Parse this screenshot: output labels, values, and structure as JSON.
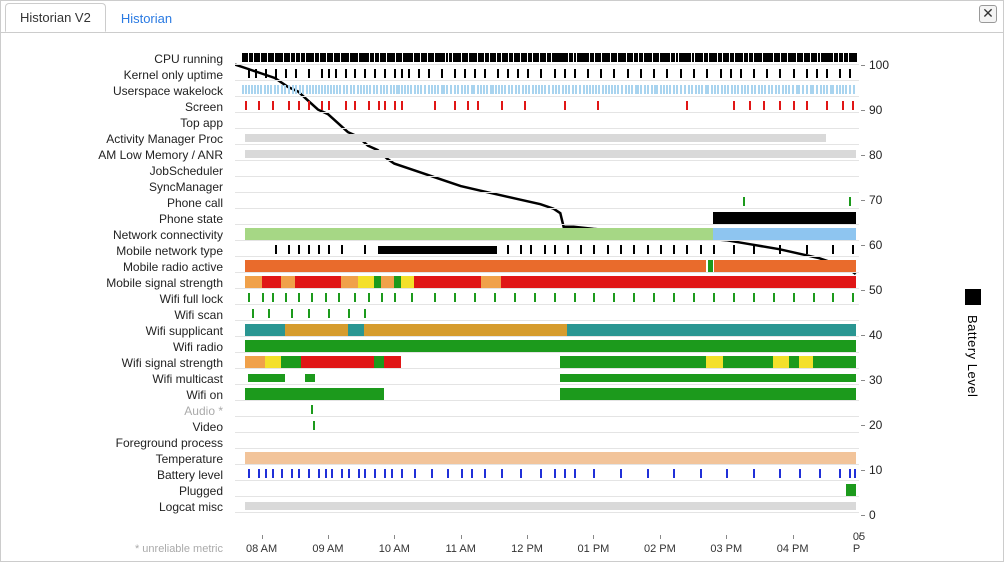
{
  "tabs": {
    "active": "Historian V2",
    "inactive": "Historian"
  },
  "close_glyph": "✕",
  "footnote": "* unreliable metric",
  "y_axis": {
    "title": "Battery Level",
    "min": 0,
    "max": 103,
    "ticks": [
      0,
      10,
      20,
      30,
      40,
      50,
      60,
      70,
      80,
      90,
      100
    ]
  },
  "x_axis": {
    "t_min": 7.6,
    "t_max": 17.0,
    "ticks": [
      {
        "t": 8,
        "label": "08 AM"
      },
      {
        "t": 9,
        "label": "09 AM"
      },
      {
        "t": 10,
        "label": "10 AM"
      },
      {
        "t": 11,
        "label": "11 AM"
      },
      {
        "t": 12,
        "label": "12 PM"
      },
      {
        "t": 13,
        "label": "01 PM"
      },
      {
        "t": 14,
        "label": "02 PM"
      },
      {
        "t": 15,
        "label": "03 PM"
      },
      {
        "t": 16,
        "label": "04 PM"
      },
      {
        "t": 17,
        "label": "05 P"
      }
    ]
  },
  "colors": {
    "black": "#000000",
    "lightblue": "#a9d4ef",
    "skyblue": "#8ec5f0",
    "palegreen": "#a6d785",
    "red": "#e01616",
    "orange_dk": "#e96b2c",
    "orange": "#f0a14a",
    "yellow": "#f4e02a",
    "green": "#1c9a1c",
    "teal": "#2a9692",
    "mustard": "#d69c2e",
    "blue": "#2030d8",
    "ltgray": "#d9d9d9",
    "peach": "#f2c49a"
  },
  "battery_path": [
    [
      7.6,
      100
    ],
    [
      7.8,
      99
    ],
    [
      8.0,
      98
    ],
    [
      8.2,
      97
    ],
    [
      8.4,
      95
    ],
    [
      8.55,
      94
    ],
    [
      8.7,
      92
    ],
    [
      8.85,
      90
    ],
    [
      9.0,
      89
    ],
    [
      9.15,
      87
    ],
    [
      9.3,
      85
    ],
    [
      9.45,
      84
    ],
    [
      9.6,
      82
    ],
    [
      9.75,
      81
    ],
    [
      9.9,
      79
    ],
    [
      10.0,
      78
    ],
    [
      10.2,
      77
    ],
    [
      10.4,
      76
    ],
    [
      10.6,
      75
    ],
    [
      10.8,
      74
    ],
    [
      11.0,
      73
    ],
    [
      11.3,
      72
    ],
    [
      11.6,
      71
    ],
    [
      11.9,
      70
    ],
    [
      12.2,
      69
    ],
    [
      12.4,
      68
    ],
    [
      12.5,
      67
    ],
    [
      12.55,
      64
    ],
    [
      12.7,
      64
    ],
    [
      13.0,
      63.5
    ],
    [
      13.4,
      63
    ],
    [
      13.8,
      62.5
    ],
    [
      14.2,
      62
    ],
    [
      14.6,
      61.5
    ],
    [
      15.0,
      61
    ],
    [
      15.4,
      60
    ],
    [
      15.8,
      59
    ],
    [
      16.1,
      58
    ],
    [
      16.4,
      57
    ],
    [
      16.6,
      56
    ],
    [
      16.7,
      55.5
    ],
    [
      16.8,
      55
    ],
    [
      16.9,
      54
    ],
    [
      16.95,
      53.5
    ]
  ],
  "rows": [
    {
      "label": "CPU running",
      "dense_ticks": {
        "color": "black",
        "from": 7.7,
        "to": 16.95,
        "gap": 0.035,
        "jitter": 0.15
      }
    },
    {
      "label": "Kernel only uptime",
      "ticks": {
        "color": "black",
        "at": [
          7.8,
          7.9,
          8.05,
          8.2,
          8.35,
          8.5,
          8.7,
          8.9,
          9.0,
          9.1,
          9.25,
          9.4,
          9.55,
          9.7,
          9.85,
          10.0,
          10.1,
          10.2,
          10.35,
          10.5,
          10.7,
          10.9,
          11.05,
          11.2,
          11.35,
          11.55,
          11.7,
          11.85,
          12.0,
          12.2,
          12.4,
          12.55,
          12.7,
          12.9,
          13.1,
          13.3,
          13.5,
          13.7,
          13.9,
          14.1,
          14.3,
          14.5,
          14.7,
          14.9,
          15.05,
          15.2,
          15.4,
          15.6,
          15.8,
          16.0,
          16.2,
          16.35,
          16.5,
          16.7,
          16.85
        ]
      }
    },
    {
      "label": "Userspace wakelock",
      "dense_ticks": {
        "color": "lightblue",
        "from": 7.7,
        "to": 16.95,
        "gap": 0.05,
        "jitter": 0.2
      }
    },
    {
      "label": "Screen",
      "ticks": {
        "color": "red",
        "at": [
          7.75,
          7.95,
          8.15,
          8.4,
          8.55,
          8.7,
          8.9,
          9.0,
          9.25,
          9.4,
          9.6,
          9.75,
          9.85,
          10.0,
          10.1,
          10.6,
          10.9,
          11.1,
          11.25,
          11.6,
          11.95,
          12.55,
          13.05,
          14.4,
          15.1,
          15.35,
          15.55,
          15.8,
          16.0,
          16.2,
          16.5,
          16.75,
          16.9
        ]
      }
    },
    {
      "label": "Top app",
      "segments": []
    },
    {
      "label": "Activity Manager Proc",
      "segments": [
        {
          "from": 7.75,
          "to": 16.5,
          "color": "ltgray"
        }
      ]
    },
    {
      "label": "AM Low Memory / ANR",
      "segments": [
        {
          "from": 7.75,
          "to": 16.95,
          "color": "ltgray"
        }
      ]
    },
    {
      "label": "JobScheduler",
      "segments": []
    },
    {
      "label": "SyncManager",
      "segments": []
    },
    {
      "label": "Phone call",
      "ticks": {
        "color": "green",
        "at": [
          15.25,
          16.85
        ]
      }
    },
    {
      "label": "Phone state",
      "segments": [
        {
          "from": 14.8,
          "to": 16.95,
          "color": "black",
          "tall": true
        }
      ]
    },
    {
      "label": "Network connectivity",
      "segments": [
        {
          "from": 7.75,
          "to": 14.8,
          "color": "palegreen",
          "tall": true
        },
        {
          "from": 14.8,
          "to": 16.95,
          "color": "skyblue",
          "tall": true
        }
      ]
    },
    {
      "label": "Mobile network type",
      "ticks": {
        "color": "black",
        "at": [
          8.2,
          8.4,
          8.55,
          8.7,
          8.85,
          9.0,
          9.2,
          9.55
        ]
      },
      "segments": [
        {
          "from": 9.75,
          "to": 11.55,
          "color": "black"
        }
      ],
      "extra_ticks": {
        "color": "black",
        "at": [
          11.7,
          11.9,
          12.05,
          12.25,
          12.4,
          12.6,
          12.8,
          13.0,
          13.2,
          13.4,
          13.6,
          13.8,
          14.0,
          14.2,
          14.4,
          14.6,
          14.8,
          15.1,
          15.4,
          15.8,
          16.2,
          16.6,
          16.9
        ]
      }
    },
    {
      "label": "Mobile radio active",
      "segments": [
        {
          "from": 7.75,
          "to": 14.7,
          "color": "orange_dk",
          "tall": true
        },
        {
          "from": 14.72,
          "to": 14.8,
          "color": "green",
          "tall": true
        },
        {
          "from": 14.82,
          "to": 16.95,
          "color": "orange_dk",
          "tall": true
        }
      ]
    },
    {
      "label": "Mobile signal strength",
      "segments": [
        {
          "from": 7.75,
          "to": 8.0,
          "color": "orange",
          "tall": true
        },
        {
          "from": 8.0,
          "to": 8.3,
          "color": "red",
          "tall": true
        },
        {
          "from": 8.3,
          "to": 8.5,
          "color": "orange",
          "tall": true
        },
        {
          "from": 8.5,
          "to": 9.2,
          "color": "red",
          "tall": true
        },
        {
          "from": 9.2,
          "to": 9.45,
          "color": "orange",
          "tall": true
        },
        {
          "from": 9.45,
          "to": 9.7,
          "color": "yellow",
          "tall": true
        },
        {
          "from": 9.7,
          "to": 9.8,
          "color": "green",
          "tall": true
        },
        {
          "from": 9.8,
          "to": 10.0,
          "color": "orange",
          "tall": true
        },
        {
          "from": 10.0,
          "to": 10.1,
          "color": "green",
          "tall": true
        },
        {
          "from": 10.1,
          "to": 10.3,
          "color": "yellow",
          "tall": true
        },
        {
          "from": 10.3,
          "to": 11.3,
          "color": "red",
          "tall": true
        },
        {
          "from": 11.3,
          "to": 11.6,
          "color": "orange",
          "tall": true
        },
        {
          "from": 11.6,
          "to": 16.95,
          "color": "red",
          "tall": true
        }
      ]
    },
    {
      "label": "Wifi full lock",
      "ticks": {
        "color": "green",
        "at": [
          7.8,
          8.0,
          8.15,
          8.35,
          8.55,
          8.75,
          8.95,
          9.15,
          9.4,
          9.6,
          9.8,
          10.0,
          10.25,
          10.6,
          10.9,
          11.2,
          11.5,
          11.8,
          12.1,
          12.4,
          12.7,
          13.0,
          13.3,
          13.6,
          13.9,
          14.2,
          14.5,
          14.8,
          15.1,
          15.4,
          15.7,
          16.0,
          16.3,
          16.6,
          16.9
        ]
      }
    },
    {
      "label": "Wifi scan",
      "ticks": {
        "color": "green",
        "at": [
          7.85,
          8.1,
          8.45,
          8.7,
          9.0,
          9.3,
          9.55
        ]
      }
    },
    {
      "label": "Wifi supplicant",
      "segments": [
        {
          "from": 7.75,
          "to": 8.35,
          "color": "teal",
          "tall": true
        },
        {
          "from": 8.35,
          "to": 9.3,
          "color": "mustard",
          "tall": true
        },
        {
          "from": 9.3,
          "to": 9.55,
          "color": "teal",
          "tall": true
        },
        {
          "from": 9.55,
          "to": 12.6,
          "color": "mustard",
          "tall": true
        },
        {
          "from": 12.6,
          "to": 16.95,
          "color": "teal",
          "tall": true
        }
      ]
    },
    {
      "label": "Wifi radio",
      "segments": [
        {
          "from": 7.75,
          "to": 16.95,
          "color": "green",
          "tall": true
        }
      ]
    },
    {
      "label": "Wifi signal strength",
      "segments": [
        {
          "from": 7.75,
          "to": 8.05,
          "color": "orange",
          "tall": true
        },
        {
          "from": 8.05,
          "to": 8.3,
          "color": "yellow",
          "tall": true
        },
        {
          "from": 8.3,
          "to": 8.6,
          "color": "green",
          "tall": true
        },
        {
          "from": 8.6,
          "to": 9.7,
          "color": "red",
          "tall": true
        },
        {
          "from": 9.7,
          "to": 9.85,
          "color": "green",
          "tall": true
        },
        {
          "from": 9.85,
          "to": 10.1,
          "color": "red",
          "tall": true
        },
        {
          "from": 12.5,
          "to": 14.7,
          "color": "green",
          "tall": true
        },
        {
          "from": 14.7,
          "to": 14.95,
          "color": "yellow",
          "tall": true
        },
        {
          "from": 14.95,
          "to": 15.7,
          "color": "green",
          "tall": true
        },
        {
          "from": 15.7,
          "to": 15.95,
          "color": "yellow",
          "tall": true
        },
        {
          "from": 15.95,
          "to": 16.1,
          "color": "green",
          "tall": true
        },
        {
          "from": 16.1,
          "to": 16.3,
          "color": "yellow",
          "tall": true
        },
        {
          "from": 16.3,
          "to": 16.95,
          "color": "green",
          "tall": true
        }
      ]
    },
    {
      "label": "Wifi multicast",
      "segments": [
        {
          "from": 7.8,
          "to": 8.35,
          "color": "green"
        },
        {
          "from": 8.65,
          "to": 8.8,
          "color": "green"
        },
        {
          "from": 12.5,
          "to": 16.95,
          "color": "green"
        }
      ]
    },
    {
      "label": "Wifi on",
      "segments": [
        {
          "from": 7.75,
          "to": 9.85,
          "color": "green",
          "tall": true
        },
        {
          "from": 12.5,
          "to": 16.95,
          "color": "green",
          "tall": true
        }
      ]
    },
    {
      "label": "Audio *",
      "dim": true,
      "ticks": {
        "color": "green",
        "at": [
          8.75
        ]
      }
    },
    {
      "label": "Video",
      "ticks": {
        "color": "green",
        "at": [
          8.77
        ]
      }
    },
    {
      "label": "Foreground process",
      "segments": []
    },
    {
      "label": "Temperature",
      "segments": [
        {
          "from": 7.75,
          "to": 16.95,
          "color": "peach",
          "tall": true
        }
      ]
    },
    {
      "label": "Battery level",
      "ticks": {
        "color": "blue",
        "at": [
          7.8,
          7.95,
          8.05,
          8.15,
          8.3,
          8.45,
          8.55,
          8.7,
          8.85,
          8.95,
          9.05,
          9.2,
          9.3,
          9.45,
          9.55,
          9.7,
          9.85,
          9.95,
          10.1,
          10.3,
          10.55,
          10.8,
          11.0,
          11.15,
          11.35,
          11.6,
          11.9,
          12.2,
          12.4,
          12.55,
          12.7,
          13.0,
          13.4,
          13.8,
          14.2,
          14.6,
          15.0,
          15.4,
          15.8,
          16.1,
          16.4,
          16.7,
          16.85,
          16.92
        ]
      }
    },
    {
      "label": "Plugged",
      "segments": [
        {
          "from": 16.8,
          "to": 16.95,
          "color": "green",
          "tall": true
        }
      ]
    },
    {
      "label": "Logcat misc",
      "segments": [
        {
          "from": 7.75,
          "to": 16.95,
          "color": "ltgray"
        }
      ]
    }
  ]
}
